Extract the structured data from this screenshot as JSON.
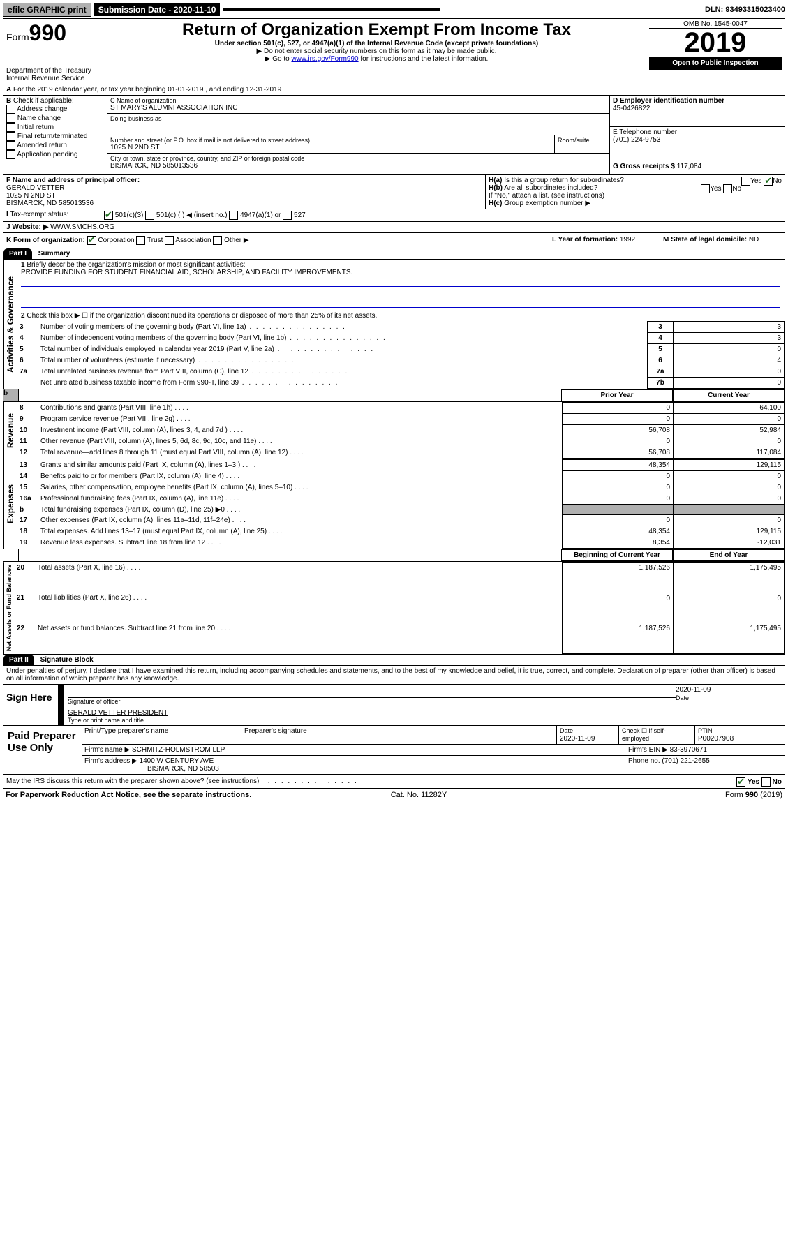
{
  "topbar": {
    "efile": "efile GRAPHIC print",
    "submission_label": "Submission Date - 2020-11-10",
    "dln_label": "DLN: 93493315023400"
  },
  "header": {
    "form_label": "Form",
    "form_num": "990",
    "dept1": "Department of the Treasury",
    "dept2": "Internal Revenue Service",
    "title": "Return of Organization Exempt From Income Tax",
    "subtitle": "Under section 501(c), 527, or 4947(a)(1) of the Internal Revenue Code (except private foundations)",
    "note1": "Do not enter social security numbers on this form as it may be made public.",
    "note2_pre": "Go to ",
    "note2_link": "www.irs.gov/Form990",
    "note2_post": " for instructions and the latest information.",
    "omb": "OMB No. 1545-0047",
    "year": "2019",
    "open": "Open to Public Inspection"
  },
  "periodA": "For the 2019 calendar year, or tax year beginning 01-01-2019  , and ending 12-31-2019",
  "sectionB": {
    "label": "Check if applicable:",
    "opts": [
      "Address change",
      "Name change",
      "Initial return",
      "Final return/terminated",
      "Amended return",
      "Application pending"
    ]
  },
  "sectionC": {
    "name_label": "C Name of organization",
    "name": "ST MARY'S ALUMNI ASSOCIATION INC",
    "dba_label": "Doing business as",
    "addr_label": "Number and street (or P.O. box if mail is not delivered to street address)",
    "room_label": "Room/suite",
    "addr": "1025 N 2ND ST",
    "city_label": "City or town, state or province, country, and ZIP or foreign postal code",
    "city": "BISMARCK, ND  585013536"
  },
  "sectionD": {
    "label": "D Employer identification number",
    "val": "45-0426822"
  },
  "sectionE": {
    "label": "E Telephone number",
    "val": "(701) 224-9753"
  },
  "sectionG": {
    "label": "G Gross receipts $",
    "val": "117,084"
  },
  "sectionF": {
    "label": "F Name and address of principal officer:",
    "name": "GERALD VETTER",
    "addr1": "1025 N 2ND ST",
    "addr2": "BISMARCK, ND  585013536"
  },
  "sectionH": {
    "ha": "Is this a group return for subordinates?",
    "hb": "Are all subordinates included?",
    "hb_note": "If \"No,\" attach a list. (see instructions)",
    "hc": "Group exemption number ▶",
    "yes": "Yes",
    "no": "No"
  },
  "sectionI": {
    "label": "Tax-exempt status:",
    "opt1": "501(c)(3)",
    "opt2": "501(c) (   ) ◀ (insert no.)",
    "opt3": "4947(a)(1) or",
    "opt4": "527"
  },
  "sectionJ": {
    "label": "Website: ▶",
    "val": "WWW.SMCHS.ORG"
  },
  "sectionK": {
    "label": "K Form of organization:",
    "opts": [
      "Corporation",
      "Trust",
      "Association",
      "Other ▶"
    ]
  },
  "sectionL": {
    "label": "L Year of formation:",
    "val": "1992"
  },
  "sectionM": {
    "label": "M State of legal domicile:",
    "val": "ND"
  },
  "part1": {
    "hdr": "Part I",
    "title": "Summary",
    "line1_label": "Briefly describe the organization's mission or most significant activities:",
    "line1_text": "PROVIDE FUNDING FOR STUDENT FINANCIAL AID, SCHOLARSHIP, AND FACILITY IMPROVEMENTS.",
    "line2": "Check this box ▶ ☐  if the organization discontinued its operations or disposed of more than 25% of its net assets.",
    "rows_top": [
      {
        "n": "3",
        "t": "Number of voting members of the governing body (Part VI, line 1a)",
        "box": "3",
        "v": "3"
      },
      {
        "n": "4",
        "t": "Number of independent voting members of the governing body (Part VI, line 1b)",
        "box": "4",
        "v": "3"
      },
      {
        "n": "5",
        "t": "Total number of individuals employed in calendar year 2019 (Part V, line 2a)",
        "box": "5",
        "v": "0"
      },
      {
        "n": "6",
        "t": "Total number of volunteers (estimate if necessary)",
        "box": "6",
        "v": "4"
      },
      {
        "n": "7a",
        "t": "Total unrelated business revenue from Part VIII, column (C), line 12",
        "box": "7a",
        "v": "0"
      },
      {
        "n": "",
        "t": "Net unrelated business taxable income from Form 990-T, line 39",
        "box": "7b",
        "v": "0"
      }
    ],
    "col_prior": "Prior Year",
    "col_current": "Current Year",
    "rows_rev": [
      {
        "n": "8",
        "t": "Contributions and grants (Part VIII, line 1h)",
        "p": "0",
        "c": "64,100"
      },
      {
        "n": "9",
        "t": "Program service revenue (Part VIII, line 2g)",
        "p": "0",
        "c": "0"
      },
      {
        "n": "10",
        "t": "Investment income (Part VIII, column (A), lines 3, 4, and 7d )",
        "p": "56,708",
        "c": "52,984"
      },
      {
        "n": "11",
        "t": "Other revenue (Part VIII, column (A), lines 5, 6d, 8c, 9c, 10c, and 11e)",
        "p": "0",
        "c": "0"
      },
      {
        "n": "12",
        "t": "Total revenue—add lines 8 through 11 (must equal Part VIII, column (A), line 12)",
        "p": "56,708",
        "c": "117,084"
      }
    ],
    "rows_exp": [
      {
        "n": "13",
        "t": "Grants and similar amounts paid (Part IX, column (A), lines 1–3 )",
        "p": "48,354",
        "c": "129,115"
      },
      {
        "n": "14",
        "t": "Benefits paid to or for members (Part IX, column (A), line 4)",
        "p": "0",
        "c": "0"
      },
      {
        "n": "15",
        "t": "Salaries, other compensation, employee benefits (Part IX, column (A), lines 5–10)",
        "p": "0",
        "c": "0"
      },
      {
        "n": "16a",
        "t": "Professional fundraising fees (Part IX, column (A), line 11e)",
        "p": "0",
        "c": "0"
      },
      {
        "n": "b",
        "t": "Total fundraising expenses (Part IX, column (D), line 25) ▶0",
        "p": "",
        "c": "",
        "shaded": true
      },
      {
        "n": "17",
        "t": "Other expenses (Part IX, column (A), lines 11a–11d, 11f–24e)",
        "p": "0",
        "c": "0"
      },
      {
        "n": "18",
        "t": "Total expenses. Add lines 13–17 (must equal Part IX, column (A), line 25)",
        "p": "48,354",
        "c": "129,115"
      },
      {
        "n": "19",
        "t": "Revenue less expenses. Subtract line 18 from line 12",
        "p": "8,354",
        "c": "-12,031"
      }
    ],
    "col_begin": "Beginning of Current Year",
    "col_end": "End of Year",
    "rows_net": [
      {
        "n": "20",
        "t": "Total assets (Part X, line 16)",
        "p": "1,187,526",
        "c": "1,175,495"
      },
      {
        "n": "21",
        "t": "Total liabilities (Part X, line 26)",
        "p": "0",
        "c": "0"
      },
      {
        "n": "22",
        "t": "Net assets or fund balances. Subtract line 21 from line 20",
        "p": "1,187,526",
        "c": "1,175,495"
      }
    ],
    "sidebar": {
      "gov": "Activities & Governance",
      "rev": "Revenue",
      "exp": "Expenses",
      "net": "Net Assets or Fund Balances"
    }
  },
  "part2": {
    "hdr": "Part II",
    "title": "Signature Block",
    "decl": "Under penalties of perjury, I declare that I have examined this return, including accompanying schedules and statements, and to the best of my knowledge and belief, it is true, correct, and complete. Declaration of preparer (other than officer) is based on all information of which preparer has any knowledge.",
    "sign_here": "Sign Here",
    "sig_officer": "Signature of officer",
    "sig_date": "2020-11-09",
    "date_lbl": "Date",
    "officer_name": "GERALD VETTER  PRESIDENT",
    "officer_sub": "Type or print name and title",
    "paid": "Paid Preparer Use Only",
    "prep_name_lbl": "Print/Type preparer's name",
    "prep_sig_lbl": "Preparer's signature",
    "prep_date_lbl": "Date",
    "prep_date": "2020-11-09",
    "check_lbl": "Check ☐ if self-employed",
    "ptin_lbl": "PTIN",
    "ptin": "P00207908",
    "firm_name_lbl": "Firm's name   ▶",
    "firm_name": "SCHMITZ-HOLMSTROM LLP",
    "firm_ein_lbl": "Firm's EIN ▶",
    "firm_ein": "83-3970671",
    "firm_addr_lbl": "Firm's address ▶",
    "firm_addr1": "1400 W CENTURY AVE",
    "firm_addr2": "BISMARCK, ND  58503",
    "firm_phone_lbl": "Phone no.",
    "firm_phone": "(701) 221-2655",
    "discuss": "May the IRS discuss this return with the preparer shown above? (see instructions)"
  },
  "footer": {
    "pra": "For Paperwork Reduction Act Notice, see the separate instructions.",
    "cat": "Cat. No. 11282Y",
    "form": "Form 990 (2019)"
  }
}
